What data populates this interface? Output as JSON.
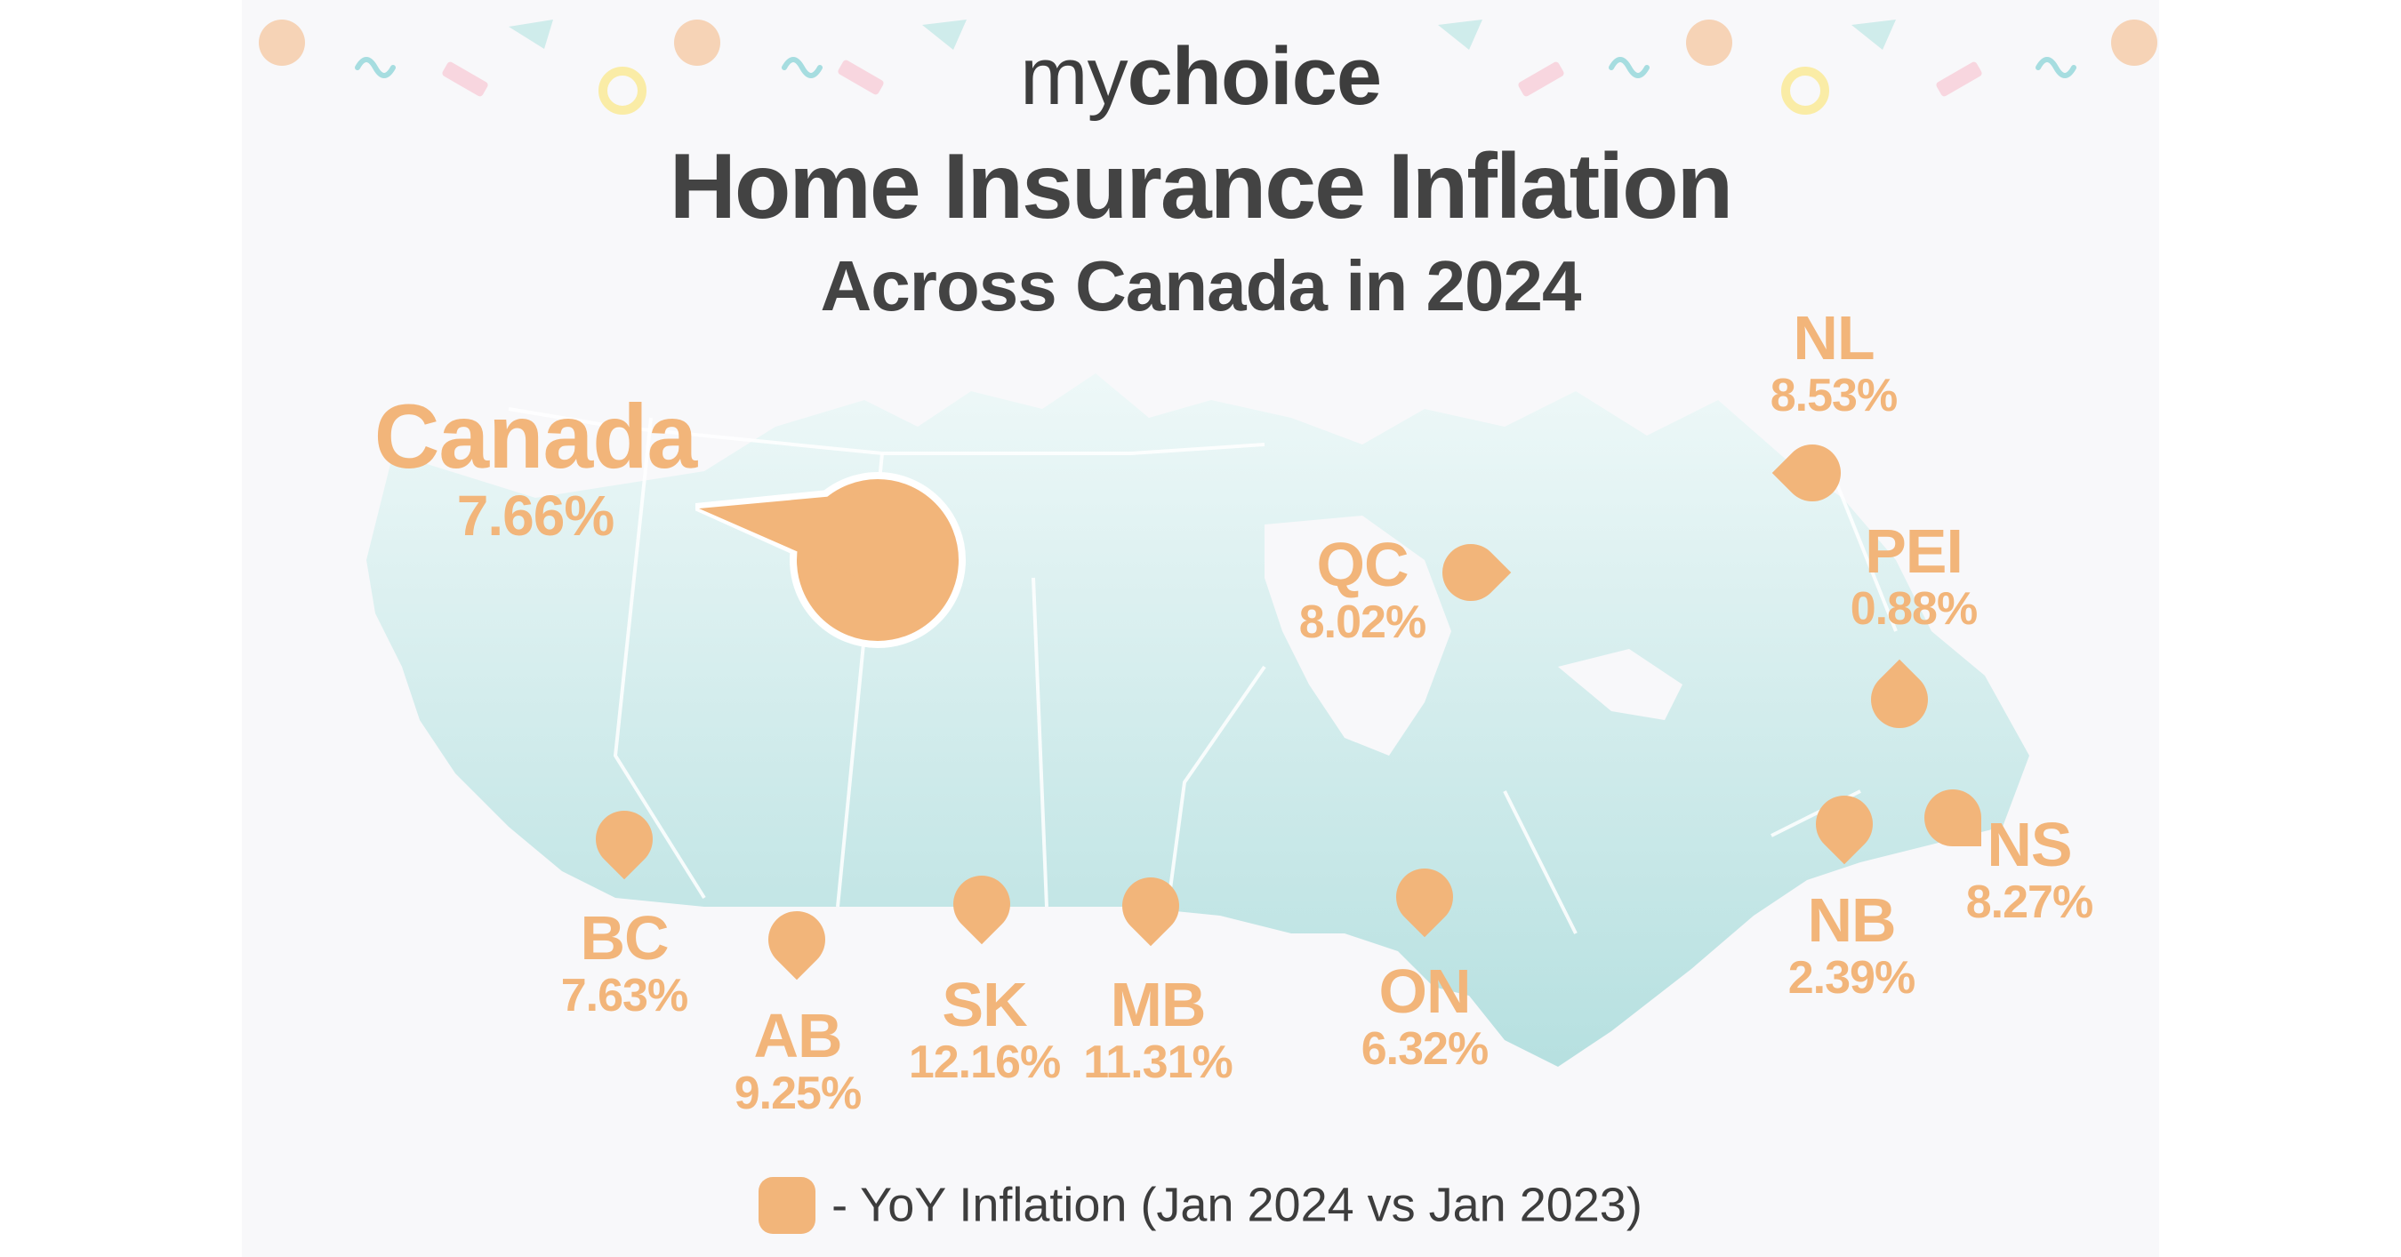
{
  "logo": {
    "part1": "my",
    "part2": "choice"
  },
  "title": "Home Insurance Inflation",
  "subtitle": "Across Canada in 2024",
  "colors": {
    "accent": "#f2b57a",
    "map_fill": "#bfe3e3",
    "text_dark": "#434343"
  },
  "regions": [
    {
      "id": "canada",
      "code": "Canada",
      "value": "7.66%",
      "value_num": 7.66
    },
    {
      "id": "bc",
      "code": "BC",
      "value": "7.63%",
      "value_num": 7.63
    },
    {
      "id": "ab",
      "code": "AB",
      "value": "9.25%",
      "value_num": 9.25
    },
    {
      "id": "sk",
      "code": "SK",
      "value": "12.16%",
      "value_num": 12.16
    },
    {
      "id": "mb",
      "code": "MB",
      "value": "11.31%",
      "value_num": 11.31
    },
    {
      "id": "on",
      "code": "ON",
      "value": "6.32%",
      "value_num": 6.32
    },
    {
      "id": "qc",
      "code": "QC",
      "value": "8.02%",
      "value_num": 8.02
    },
    {
      "id": "nl",
      "code": "NL",
      "value": "8.53%",
      "value_num": 8.53
    },
    {
      "id": "pei",
      "code": "PEI",
      "value": "0.88%",
      "value_num": 0.88
    },
    {
      "id": "nb",
      "code": "NB",
      "value": "2.39%",
      "value_num": 2.39
    },
    {
      "id": "ns",
      "code": "NS",
      "value": "8.27%",
      "value_num": 8.27
    }
  ],
  "legend": {
    "text": "- YoY Inflation (Jan 2024 vs Jan 2023)"
  }
}
